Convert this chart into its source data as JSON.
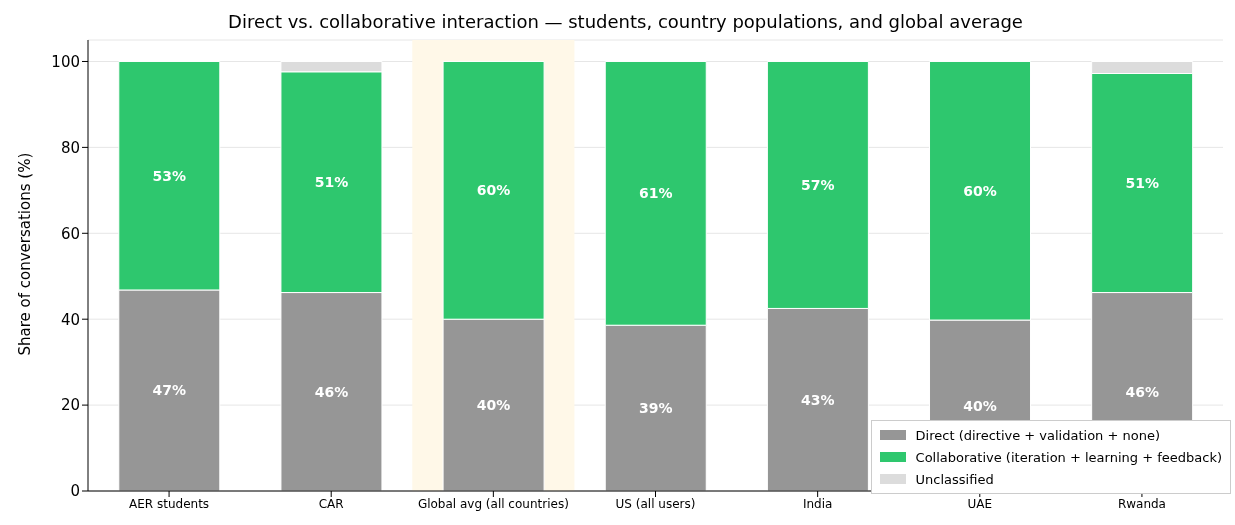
{
  "chart_data": {
    "type": "bar",
    "title": "Direct vs. collaborative interaction — students, country populations, and global average",
    "ylabel": "Share of conversations (%)",
    "categories": [
      "AER students",
      "CAR",
      "Global avg (all countries)",
      "US (all users)",
      "India",
      "UAE",
      "Rwanda"
    ],
    "stacked": true,
    "ylim": [
      0,
      105
    ],
    "yticks": [
      0,
      20,
      40,
      60,
      80,
      100
    ],
    "grid": "y",
    "legend": "bottom right",
    "bands": [
      {
        "axis": "x",
        "from": "Global avg (all countries)",
        "to": "Global avg (all countries)",
        "color": "#fff8e8"
      }
    ],
    "series": [
      {
        "name": "Direct (directive + validation + none)",
        "color": "#969696",
        "values": [
          46.8,
          46.2,
          40.0,
          38.6,
          42.5,
          39.8,
          46.2
        ],
        "value_labels": [
          "47%",
          "46%",
          "40%",
          "39%",
          "43%",
          "40%",
          "46%"
        ]
      },
      {
        "name": "Collaborative (iteration + learning + feedback)",
        "color": "#2ec76e",
        "values": [
          53.2,
          51.4,
          60.0,
          61.4,
          57.5,
          60.2,
          51.0
        ],
        "value_labels": [
          "53%",
          "51%",
          "60%",
          "61%",
          "57%",
          "60%",
          "51%"
        ]
      },
      {
        "name": "Unclassified",
        "color": "#dcdcdc",
        "values": [
          0,
          2.4,
          0,
          0,
          0,
          0,
          2.8
        ]
      }
    ]
  }
}
